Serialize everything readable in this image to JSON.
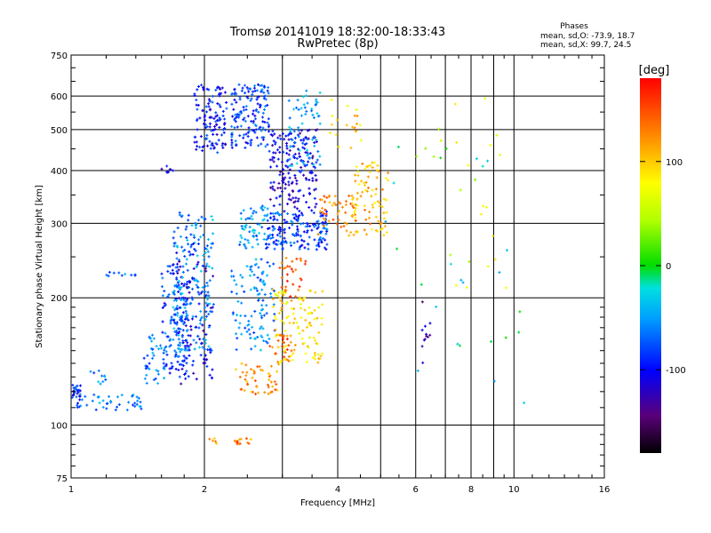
{
  "chart_data": {
    "type": "scatter",
    "title": "Tromsø 20141019 18:32:00-18:33:43",
    "subtitle": "RwPretec (8p)",
    "xlabel": "Frequency [MHz]",
    "ylabel": "Stationary phase Virtual Height [km]",
    "x_scale": "log",
    "y_scale": "log",
    "xlim": [
      1,
      16
    ],
    "ylim": [
      75,
      750
    ],
    "x_tick_values": [
      1,
      2,
      4,
      6,
      8,
      10,
      16
    ],
    "x_tick_labels": [
      "1",
      "2",
      "4",
      "6",
      "8",
      "10",
      "16"
    ],
    "x_minor_values": [
      3,
      5,
      7,
      9
    ],
    "y_tick_values": [
      75,
      100,
      200,
      300,
      400,
      500,
      600,
      750
    ],
    "y_tick_labels": [
      "75",
      "100",
      "200",
      "300",
      "400",
      "500",
      "600",
      "750"
    ],
    "y_grid_values": [
      100,
      200,
      300,
      400,
      500,
      600
    ],
    "grid": true,
    "stats": {
      "heading": "Phases",
      "line_o": "mean, sd,O: -73.9, 18.7",
      "line_x": "mean, sd,X:  99.7, 24.5"
    },
    "colorbar": {
      "label": "[deg]",
      "range": [
        -180,
        180
      ],
      "tick_values": [
        100,
        0,
        -100
      ],
      "tick_labels": [
        "100",
        "0",
        "-100"
      ]
    },
    "color_encoding": "phase",
    "clusters": [
      {
        "x": [
          1.0,
          1.05
        ],
        "y": [
          108,
          125
        ],
        "phase": -90,
        "n": 30
      },
      {
        "x": [
          1.05,
          1.45
        ],
        "y": [
          108,
          118
        ],
        "phase": -60,
        "n": 40
      },
      {
        "x": [
          1.1,
          1.2
        ],
        "y": [
          125,
          135
        ],
        "phase": -60,
        "n": 10
      },
      {
        "x": [
          1.2,
          1.4
        ],
        "y": [
          225,
          230
        ],
        "phase": -70,
        "n": 10
      },
      {
        "x": [
          1.45,
          1.65
        ],
        "y": [
          125,
          165
        ],
        "phase": -65,
        "n": 40
      },
      {
        "x": [
          1.6,
          1.85
        ],
        "y": [
          130,
          240
        ],
        "phase": -80,
        "n": 120
      },
      {
        "x": [
          1.7,
          2.1
        ],
        "y": [
          150,
          320
        ],
        "phase": -55,
        "n": 200
      },
      {
        "x": [
          1.7,
          2.1
        ],
        "y": [
          125,
          270
        ],
        "phase": -105,
        "n": 100
      },
      {
        "x": [
          1.6,
          1.7
        ],
        "y": [
          395,
          410
        ],
        "phase": -105,
        "n": 8
      },
      {
        "x": [
          1.9,
          2.25
        ],
        "y": [
          440,
          640
        ],
        "phase": -95,
        "n": 120
      },
      {
        "x": [
          2.3,
          2.8
        ],
        "y": [
          450,
          640
        ],
        "phase": -85,
        "n": 150
      },
      {
        "x": [
          2.3,
          2.9
        ],
        "y": [
          150,
          250
        ],
        "phase": -60,
        "n": 110
      },
      {
        "x": [
          2.4,
          2.8
        ],
        "y": [
          260,
          330
        ],
        "phase": -50,
        "n": 60
      },
      {
        "x": [
          2.35,
          2.95
        ],
        "y": [
          118,
          140
        ],
        "phase": 125,
        "n": 50
      },
      {
        "x": [
          2.8,
          3.15
        ],
        "y": [
          140,
          165
        ],
        "phase": 140,
        "n": 30
      },
      {
        "x": [
          2.85,
          3.7
        ],
        "y": [
          140,
          210
        ],
        "phase": 90,
        "n": 110
      },
      {
        "x": [
          2.75,
          3.8
        ],
        "y": [
          260,
          320
        ],
        "phase": -80,
        "n": 170
      },
      {
        "x": [
          2.8,
          3.6
        ],
        "y": [
          320,
          500
        ],
        "phase": -110,
        "n": 180
      },
      {
        "x": [
          3.1,
          3.65
        ],
        "y": [
          410,
          620
        ],
        "phase": -50,
        "n": 70
      },
      {
        "x": [
          2.95,
          3.4
        ],
        "y": [
          200,
          250
        ],
        "phase": 150,
        "n": 30
      },
      {
        "x": [
          3.6,
          4.4
        ],
        "y": [
          280,
          350
        ],
        "phase": 130,
        "n": 50
      },
      {
        "x": [
          4.3,
          5.2
        ],
        "y": [
          280,
          420
        ],
        "phase": 105,
        "n": 90
      },
      {
        "x": [
          3.8,
          4.6
        ],
        "y": [
          440,
          600
        ],
        "phase": 95,
        "n": 20
      },
      {
        "x": [
          2.3,
          2.6
        ],
        "y": [
          90,
          93
        ],
        "phase": 130,
        "n": 15
      },
      {
        "x": [
          2.05,
          2.15
        ],
        "y": [
          90,
          93
        ],
        "phase": 115,
        "n": 5
      },
      {
        "x": [
          6.2,
          6.5
        ],
        "y": [
          130,
          200
        ],
        "phase": -130,
        "n": 12
      },
      {
        "x": [
          6.0,
          9.8
        ],
        "y": [
          200,
          600
        ],
        "phase": 60,
        "n": 25
      },
      {
        "x": [
          5.0,
          11.5
        ],
        "y": [
          100,
          460
        ],
        "phase": -20,
        "n": 25
      }
    ]
  }
}
